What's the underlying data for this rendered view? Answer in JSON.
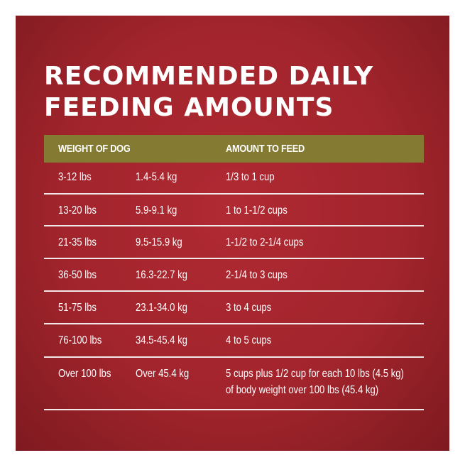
{
  "title": {
    "line1": "RECOMMENDED DAILY",
    "line2": "FEEDING AMOUNTS"
  },
  "table": {
    "headers": {
      "weight": "WEIGHT OF DOG",
      "amount": "AMOUNT TO FEED"
    },
    "rows": [
      {
        "lbs": "3-12 lbs",
        "kg": "1.4-5.4 kg",
        "amount": "1/3 to 1 cup"
      },
      {
        "lbs": "13-20 lbs",
        "kg": "5.9-9.1 kg",
        "amount": "1 to 1-1/2 cups"
      },
      {
        "lbs": "21-35 lbs",
        "kg": "9.5-15.9 kg",
        "amount": "1-1/2 to 2-1/4 cups"
      },
      {
        "lbs": "36-50 lbs",
        "kg": "16.3-22.7 kg",
        "amount": "2-1/4 to 3 cups"
      },
      {
        "lbs": "51-75 lbs",
        "kg": "23.1-34.0 kg",
        "amount": "3 to 4 cups"
      },
      {
        "lbs": "76-100 lbs",
        "kg": "34.5-45.4 kg",
        "amount": "4 to 5 cups"
      },
      {
        "lbs": "Over 100 lbs",
        "kg": "Over 45.4 kg",
        "amount": "5 cups plus 1/2 cup for each 10 lbs (4.5 kg)",
        "amount2": "of body weight over 100 lbs (45.4 kg)"
      }
    ]
  },
  "colors": {
    "background": "#a2242c",
    "header_bar": "#857a31",
    "text": "#ffffff"
  }
}
